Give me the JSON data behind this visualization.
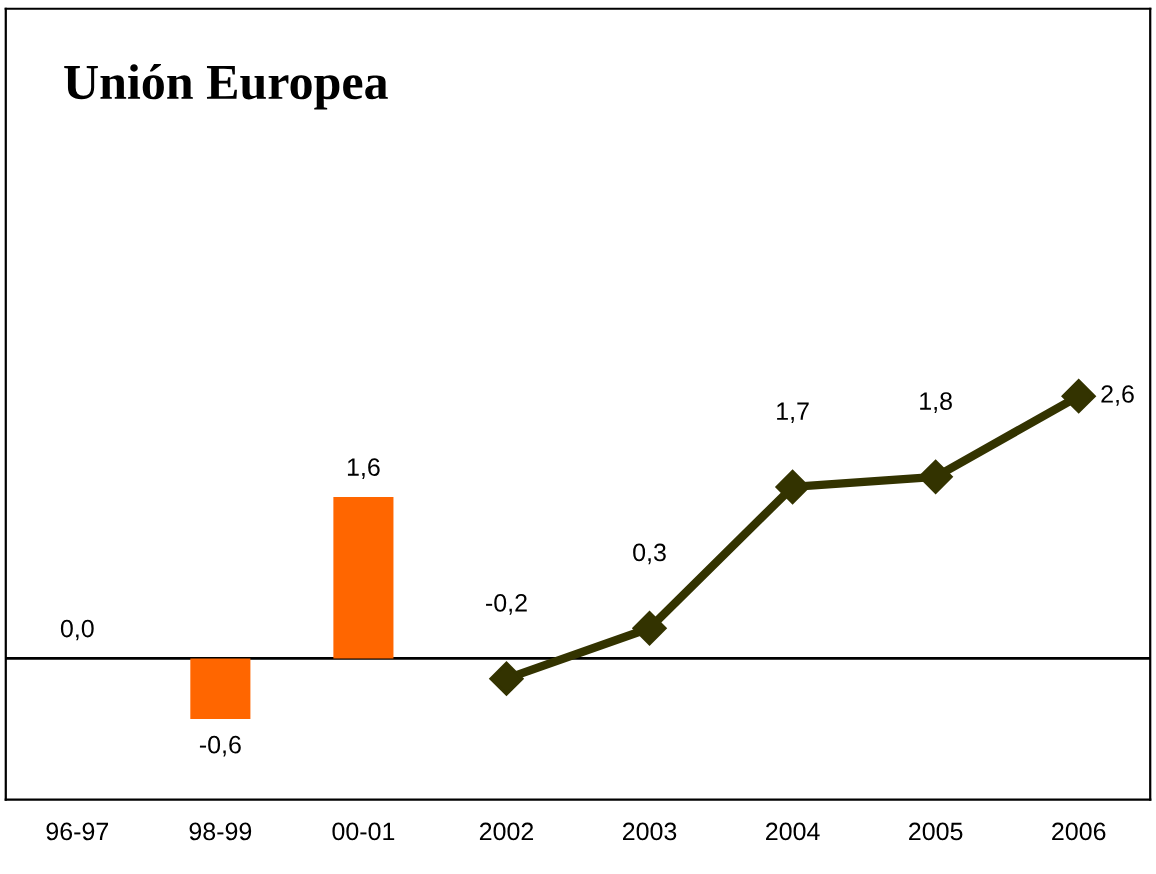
{
  "chart_data": {
    "type": "bar",
    "title": "Unión Europea",
    "categories": [
      "96-97",
      "98-99",
      "00-01",
      "2002",
      "2003",
      "2004",
      "2005",
      "2006"
    ],
    "series": [
      {
        "color": "#ff6600",
        "values": [
          0.0,
          -0.6,
          1.6,
          null,
          null,
          null,
          null,
          null
        ],
        "value_labels": [
          "0,0",
          "-0,6",
          "1,6",
          null,
          null,
          null,
          null,
          null
        ]
      },
      {
        "type": "line",
        "color": "#333300",
        "marker": "diamond",
        "line_style": "solid",
        "values": [
          null,
          null,
          null,
          -0.2,
          0.3,
          1.7,
          1.8,
          2.6
        ],
        "value_labels": [
          null,
          null,
          null,
          "-0,2",
          "0,3",
          "1,7",
          "1,8",
          "2,6"
        ]
      }
    ],
    "grid": false,
    "legend": false
  }
}
